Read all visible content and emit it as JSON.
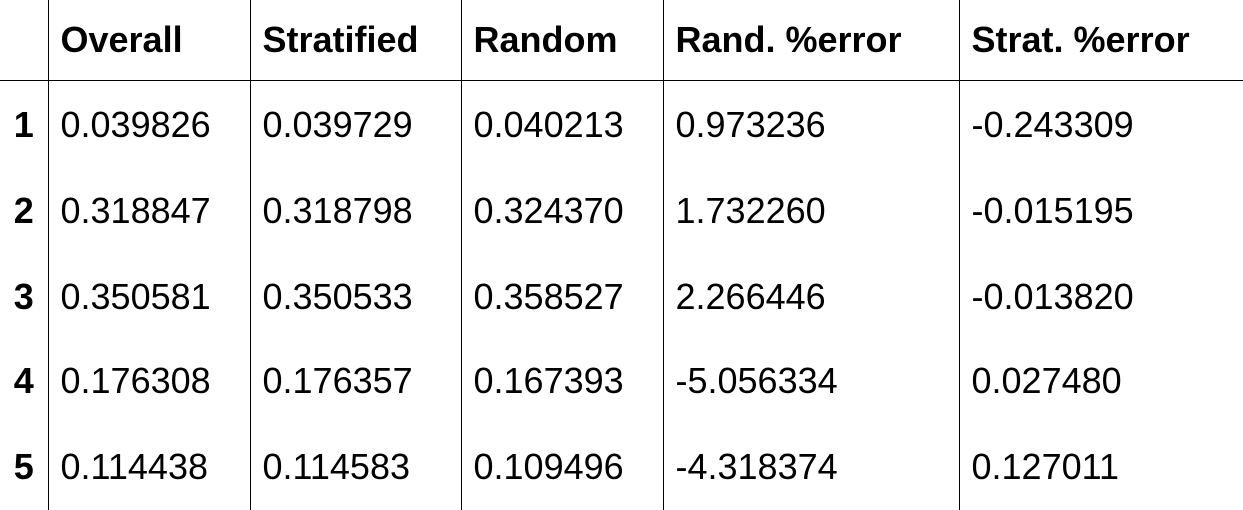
{
  "table": {
    "columns": [
      "",
      "Overall",
      "Stratified",
      "Random",
      "Rand. %error",
      "Strat. %error"
    ],
    "rows": [
      {
        "index": "1",
        "values": [
          "0.039826",
          "0.039729",
          "0.040213",
          "0.973236",
          "-0.243309"
        ]
      },
      {
        "index": "2",
        "values": [
          "0.318847",
          "0.318798",
          "0.324370",
          "1.732260",
          "-0.015195"
        ]
      },
      {
        "index": "3",
        "values": [
          "0.350581",
          "0.350533",
          "0.358527",
          "2.266446",
          "-0.013820"
        ]
      },
      {
        "index": "4",
        "values": [
          "0.176308",
          "0.176357",
          "0.167393",
          "-5.056334",
          "0.027480"
        ]
      },
      {
        "index": "5",
        "values": [
          "0.114438",
          "0.114583",
          "0.109496",
          "-4.318374",
          "0.127011"
        ]
      }
    ]
  }
}
